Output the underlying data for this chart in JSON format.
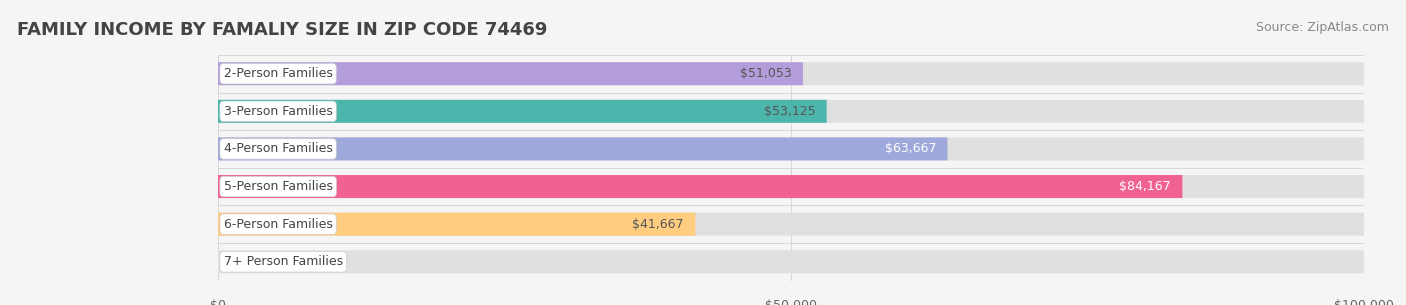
{
  "title": "FAMILY INCOME BY FAMALIY SIZE IN ZIP CODE 74469",
  "source": "Source: ZipAtlas.com",
  "categories": [
    "2-Person Families",
    "3-Person Families",
    "4-Person Families",
    "5-Person Families",
    "6-Person Families",
    "7+ Person Families"
  ],
  "values": [
    51053,
    53125,
    63667,
    84167,
    41667,
    0
  ],
  "bar_colors": [
    "#b39ddb",
    "#4db6ac",
    "#9fa8da",
    "#f06292",
    "#ffcc80",
    "#ef9a9a"
  ],
  "label_colors": [
    "#555555",
    "#555555",
    "#ffffff",
    "#ffffff",
    "#555555",
    "#555555"
  ],
  "xlim": [
    0,
    100000
  ],
  "xticks": [
    0,
    50000,
    100000
  ],
  "xtick_labels": [
    "$0",
    "$50,000",
    "$100,000"
  ],
  "background_color": "#f5f5f5",
  "bar_bg_color": "#e8e8e8",
  "title_fontsize": 13,
  "source_fontsize": 9,
  "label_fontsize": 9,
  "value_fontsize": 9,
  "figsize": [
    14.06,
    3.05
  ],
  "dpi": 100
}
